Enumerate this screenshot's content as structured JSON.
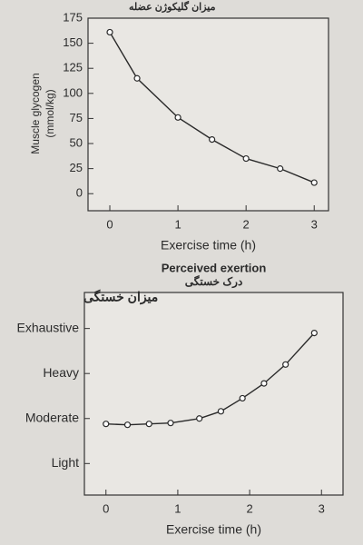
{
  "chart_data": [
    {
      "type": "line",
      "annotation": "میزان گلیکوژن عضله",
      "ylabel": [
        "Muscle glycogen",
        "(mmol/kg)"
      ],
      "xlabel": "Exercise time (h)",
      "x": [
        0,
        0.4,
        1,
        1.5,
        2,
        2.5,
        3
      ],
      "series": [
        {
          "color": "#2a2a2a",
          "values": [
            161,
            115,
            76,
            54,
            35,
            25,
            11
          ]
        }
      ],
      "xlim": [
        -0.32,
        3.21
      ],
      "xticks": [
        0,
        1,
        2,
        3
      ],
      "ylim": [
        -17,
        175
      ],
      "yticks": [
        0,
        25,
        50,
        75,
        100,
        125,
        150,
        175
      ],
      "grid": false
    },
    {
      "type": "line",
      "title": "Perceived exertion",
      "subtitle": "درک خستگی",
      "annotation": "میزان خستگی",
      "xlabel": "Exercise time (h)",
      "x": [
        0,
        0.3,
        0.6,
        0.9,
        1.3,
        1.6,
        1.9,
        2.2,
        2.5,
        2.9
      ],
      "series": [
        {
          "color": "#2a2a2a",
          "values": [
            1.88,
            1.86,
            1.88,
            1.9,
            2.0,
            2.16,
            2.45,
            2.78,
            3.2,
            3.9
          ]
        }
      ],
      "xlim": [
        -0.3,
        3.3
      ],
      "xticks": [
        0,
        1,
        2,
        3
      ],
      "ylim": [
        0.3,
        4.8
      ],
      "yticks": [
        {
          "value": 1,
          "label": "Light"
        },
        {
          "value": 2,
          "label": "Moderate"
        },
        {
          "value": 3,
          "label": "Heavy"
        },
        {
          "value": 4,
          "label": "Exhaustive"
        }
      ],
      "grid": false
    }
  ]
}
